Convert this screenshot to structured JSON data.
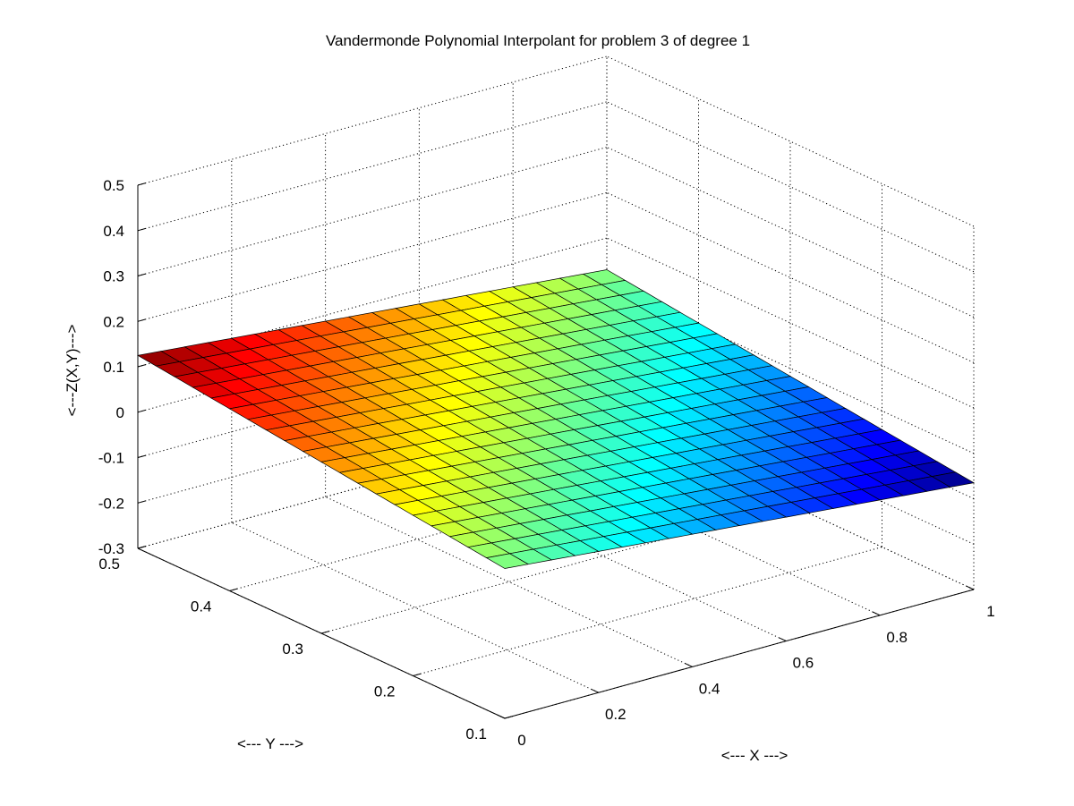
{
  "chart_data": {
    "type": "surface",
    "title": "Vandermonde Polynomial Interpolant for problem 3 of degree 1",
    "xlabel": "<--- X --->",
    "ylabel": "<--- Y --->",
    "zlabel": "<---Z(X,Y)--->",
    "xlim": [
      0,
      1
    ],
    "ylim": [
      0.1,
      0.5
    ],
    "zlim": [
      -0.3,
      0.5
    ],
    "x_ticks": [
      0,
      0.2,
      0.4,
      0.6,
      0.8,
      1
    ],
    "x_tick_labels": [
      "0",
      "0.2",
      "0.4",
      "0.6",
      "0.8",
      "1"
    ],
    "y_ticks": [
      0.1,
      0.2,
      0.3,
      0.4,
      0.5
    ],
    "y_tick_labels": [
      "0.1",
      "0.2",
      "0.3",
      "0.4",
      "0.5"
    ],
    "z_ticks": [
      -0.3,
      -0.2,
      -0.1,
      0,
      0.1,
      0.2,
      0.3,
      0.4,
      0.5
    ],
    "z_tick_labels": [
      "-0.3",
      "-0.2",
      "-0.1",
      "0",
      "0.1",
      "0.2",
      "0.3",
      "0.4",
      "0.5"
    ],
    "grid": true,
    "colormap": "jet",
    "surface": {
      "corners": [
        {
          "x": 0,
          "y": 0.1,
          "z": 0.03
        },
        {
          "x": 1,
          "y": 0.1,
          "z": -0.065
        },
        {
          "x": 1,
          "y": 0.5,
          "z": 0.03
        },
        {
          "x": 0,
          "y": 0.5,
          "z": 0.125
        }
      ],
      "mesh_divisions": 20
    }
  }
}
